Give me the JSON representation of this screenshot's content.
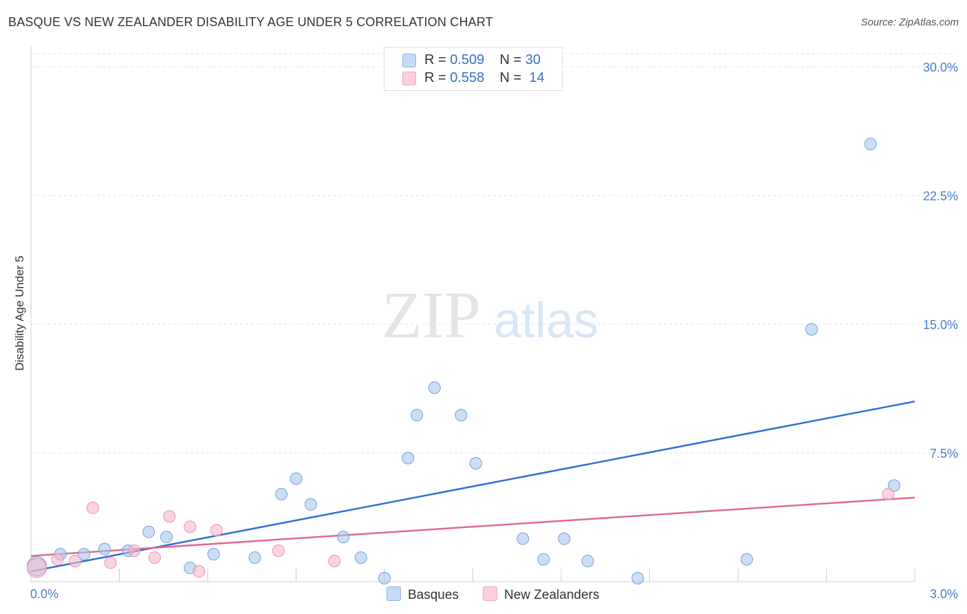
{
  "title": "BASQUE VS NEW ZEALANDER DISABILITY AGE UNDER 5 CORRELATION CHART",
  "source": "Source: ZipAtlas.com",
  "watermark": {
    "zip": "ZIP",
    "atlas": "atlas"
  },
  "legend": [
    {
      "r_label": "R =",
      "r_value": "0.509",
      "n_label": "N =",
      "n_value": "30",
      "color": "#a8c8f0"
    },
    {
      "r_label": "R =",
      "r_value": "0.558",
      "n_label": "N =",
      "n_value": "14",
      "color": "#f8b8cc"
    }
  ],
  "bottom_legend": [
    {
      "label": "Basques",
      "color": "#a8c8f0"
    },
    {
      "label": "New Zealanders",
      "color": "#f8b8cc"
    }
  ],
  "chart_data": {
    "type": "scatter",
    "title": "BASQUE VS NEW ZEALANDER DISABILITY AGE UNDER 5 CORRELATION CHART",
    "xlabel": "",
    "ylabel": "Disability Age Under 5",
    "xlim": [
      0,
      3.0
    ],
    "ylim": [
      0,
      30.0
    ],
    "x_tick_labels": [
      "0.0%",
      "3.0%"
    ],
    "y_ticks": [
      7.5,
      15.0,
      22.5,
      30.0
    ],
    "y_tick_labels": [
      "7.5%",
      "15.0%",
      "22.5%",
      "30.0%"
    ],
    "grid": true,
    "legend_position": "top-center",
    "series": [
      {
        "name": "Basques",
        "color": "#a8c8f0",
        "stroke": "#6f9fd8",
        "line_color": "#2f6fd0",
        "trend": [
          [
            0.0,
            0.6
          ],
          [
            3.0,
            10.5
          ]
        ],
        "points": [
          [
            0.02,
            0.9
          ],
          [
            0.1,
            1.6
          ],
          [
            0.18,
            1.6
          ],
          [
            0.25,
            1.9
          ],
          [
            0.33,
            1.8
          ],
          [
            0.4,
            2.9
          ],
          [
            0.46,
            2.6
          ],
          [
            0.54,
            0.8
          ],
          [
            0.62,
            1.6
          ],
          [
            0.76,
            1.4
          ],
          [
            0.85,
            5.1
          ],
          [
            0.9,
            6.0
          ],
          [
            0.95,
            4.5
          ],
          [
            1.06,
            2.6
          ],
          [
            1.12,
            1.4
          ],
          [
            1.2,
            0.2
          ],
          [
            1.28,
            7.2
          ],
          [
            1.31,
            9.7
          ],
          [
            1.37,
            11.3
          ],
          [
            1.46,
            9.7
          ],
          [
            1.51,
            6.9
          ],
          [
            1.67,
            2.5
          ],
          [
            1.74,
            1.3
          ],
          [
            1.81,
            2.5
          ],
          [
            1.89,
            1.2
          ],
          [
            2.06,
            0.2
          ],
          [
            2.43,
            1.3
          ],
          [
            2.65,
            14.7
          ],
          [
            2.85,
            25.5
          ],
          [
            2.93,
            5.6
          ]
        ]
      },
      {
        "name": "New Zealanders",
        "color": "#f8b8cc",
        "stroke": "#e890ac",
        "line_color": "#e06890",
        "trend": [
          [
            0.0,
            1.5
          ],
          [
            3.0,
            4.9
          ]
        ],
        "points": [
          [
            0.02,
            0.8
          ],
          [
            0.09,
            1.3
          ],
          [
            0.15,
            1.2
          ],
          [
            0.21,
            4.3
          ],
          [
            0.27,
            1.1
          ],
          [
            0.35,
            1.8
          ],
          [
            0.42,
            1.4
          ],
          [
            0.47,
            3.8
          ],
          [
            0.54,
            3.2
          ],
          [
            0.57,
            0.6
          ],
          [
            0.63,
            3.0
          ],
          [
            0.84,
            1.8
          ],
          [
            1.03,
            1.2
          ],
          [
            2.91,
            5.1
          ]
        ]
      }
    ]
  }
}
